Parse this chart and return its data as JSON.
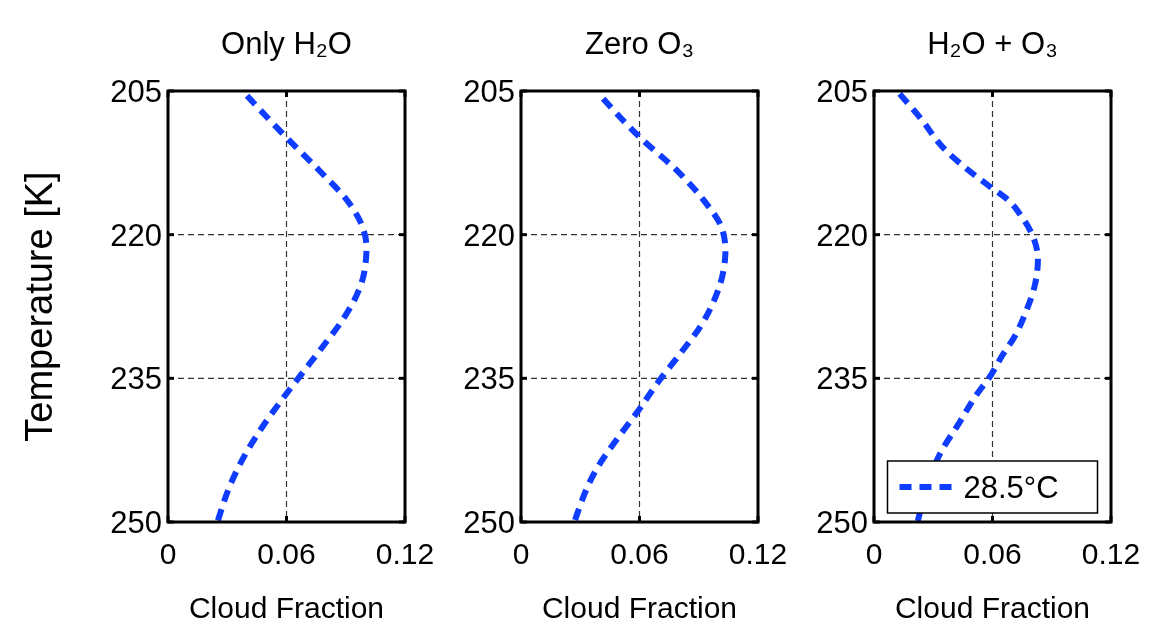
{
  "chart_data": [
    {
      "type": "line",
      "title": "Only H₂O",
      "xlabel": "Cloud Fraction",
      "ylabel": "Temperature [K]",
      "xlim": [
        0,
        0.12
      ],
      "xticks": [
        0,
        0.06,
        0.12
      ],
      "ylim": [
        250,
        205
      ],
      "yticks": [
        205,
        220,
        235,
        250
      ],
      "grid": true,
      "line_style": "dashed",
      "series": [
        {
          "color": "#0f3dff",
          "x": [
            0.04,
            0.0597,
            0.0766,
            0.0917,
            0.0985,
            0.1005,
            0.0993,
            0.0951,
            0.0884,
            0.0783,
            0.0682,
            0.0589,
            0.048,
            0.0395,
            0.032,
            0.0252
          ],
          "values": [
            205.5,
            209.8,
            213.3,
            216.7,
            219.2,
            221.3,
            224.0,
            226.5,
            228.9,
            231.7,
            234.4,
            236.9,
            240.0,
            242.8,
            245.9,
            249.9
          ]
        }
      ]
    },
    {
      "type": "line",
      "title": "Zero O₃",
      "xlabel": "Cloud Fraction",
      "xlim": [
        0,
        0.12
      ],
      "xticks": [
        0,
        0.06,
        0.12
      ],
      "ylim": [
        250,
        205
      ],
      "yticks": [
        205,
        220,
        235,
        250
      ],
      "grid": true,
      "line_style": "dashed",
      "series": [
        {
          "color": "#0f3dff",
          "x": [
            0.0416,
            0.06,
            0.0789,
            0.0925,
            0.102,
            0.1035,
            0.1023,
            0.0985,
            0.0908,
            0.0807,
            0.0705,
            0.0586,
            0.0484,
            0.0382,
            0.0272
          ],
          "values": [
            205.8,
            209.8,
            213.3,
            216.4,
            219.5,
            221.6,
            224.0,
            226.5,
            229.6,
            232.4,
            235.1,
            238.6,
            241.4,
            244.5,
            249.9
          ]
        }
      ]
    },
    {
      "type": "line",
      "title": "H₂O + O₃",
      "xlabel": "Cloud Fraction",
      "xlim": [
        0,
        0.12
      ],
      "xticks": [
        0,
        0.06,
        0.12
      ],
      "ylim": [
        250,
        205
      ],
      "yticks": [
        205,
        220,
        235,
        250
      ],
      "grid": true,
      "line_style": "dashed",
      "legend": "bottom",
      "series": [
        {
          "name": "28.5°C",
          "color": "#0f3dff",
          "x": [
            0.013,
            0.023,
            0.0363,
            0.048,
            0.0588,
            0.068,
            0.0747,
            0.0805,
            0.083,
            0.0813,
            0.0772,
            0.0713,
            0.0647,
            0.0597,
            0.0513,
            0.043,
            0.0347,
            0.028,
            0.0222
          ],
          "values": [
            205.3,
            207.7,
            211.2,
            213.3,
            215.0,
            216.4,
            218.1,
            220.2,
            222.6,
            225.4,
            227.9,
            230.6,
            232.7,
            234.5,
            236.9,
            239.7,
            242.4,
            null,
            249.9
          ]
        }
      ]
    }
  ]
}
